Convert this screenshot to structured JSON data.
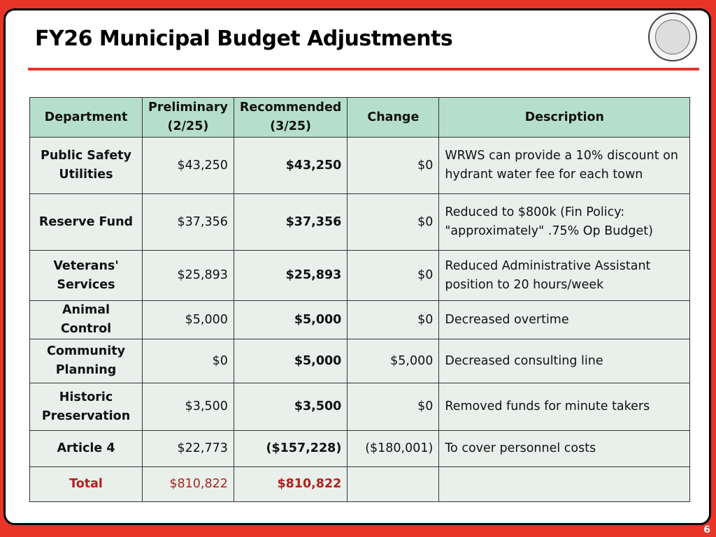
{
  "title": "FY26 Municipal Budget Adjustments",
  "page_number": "6",
  "seal_icon": "town-seal",
  "colors": {
    "frame": "#e8352a",
    "header": "#b5dfcc",
    "cell": "#e9f0ec",
    "total": "#b0211c"
  },
  "table": {
    "headers": [
      "Department",
      "Preliminary (2/25)",
      "Recommended (3/25)",
      "Change",
      "Description"
    ],
    "rows": [
      {
        "department": "Public Safety Utilities",
        "preliminary": "$43,250",
        "recommended": "$43,250",
        "change": "$0",
        "description": "WRWS can provide a 10% discount on hydrant water fee for each town"
      },
      {
        "department": "Reserve Fund",
        "preliminary": "$37,356",
        "recommended": "$37,356",
        "change": "$0",
        "description": "Reduced to $800k (Fin Policy: \"approximately\" .75% Op Budget)"
      },
      {
        "department": "Veterans' Services",
        "preliminary": "$25,893",
        "recommended": "$25,893",
        "change": "$0",
        "description": "Reduced Administrative Assistant position to 20 hours/week"
      },
      {
        "department": "Animal Control",
        "preliminary": "$5,000",
        "recommended": "$5,000",
        "change": "$0",
        "description": "Decreased overtime"
      },
      {
        "department": "Community Planning",
        "preliminary": "$0",
        "recommended": "$5,000",
        "change": "$5,000",
        "description": "Decreased consulting line"
      },
      {
        "department": "Historic Preservation",
        "preliminary": "$3,500",
        "recommended": "$3,500",
        "change": "$0",
        "description": "Removed funds for minute takers"
      },
      {
        "department": "Article 4",
        "preliminary": "$22,773",
        "recommended": "($157,228)",
        "change": "($180,001)",
        "description": "To cover personnel costs"
      }
    ],
    "total": {
      "department": "Total",
      "preliminary": "$810,822",
      "recommended": "$810,822",
      "change": "",
      "description": ""
    }
  }
}
